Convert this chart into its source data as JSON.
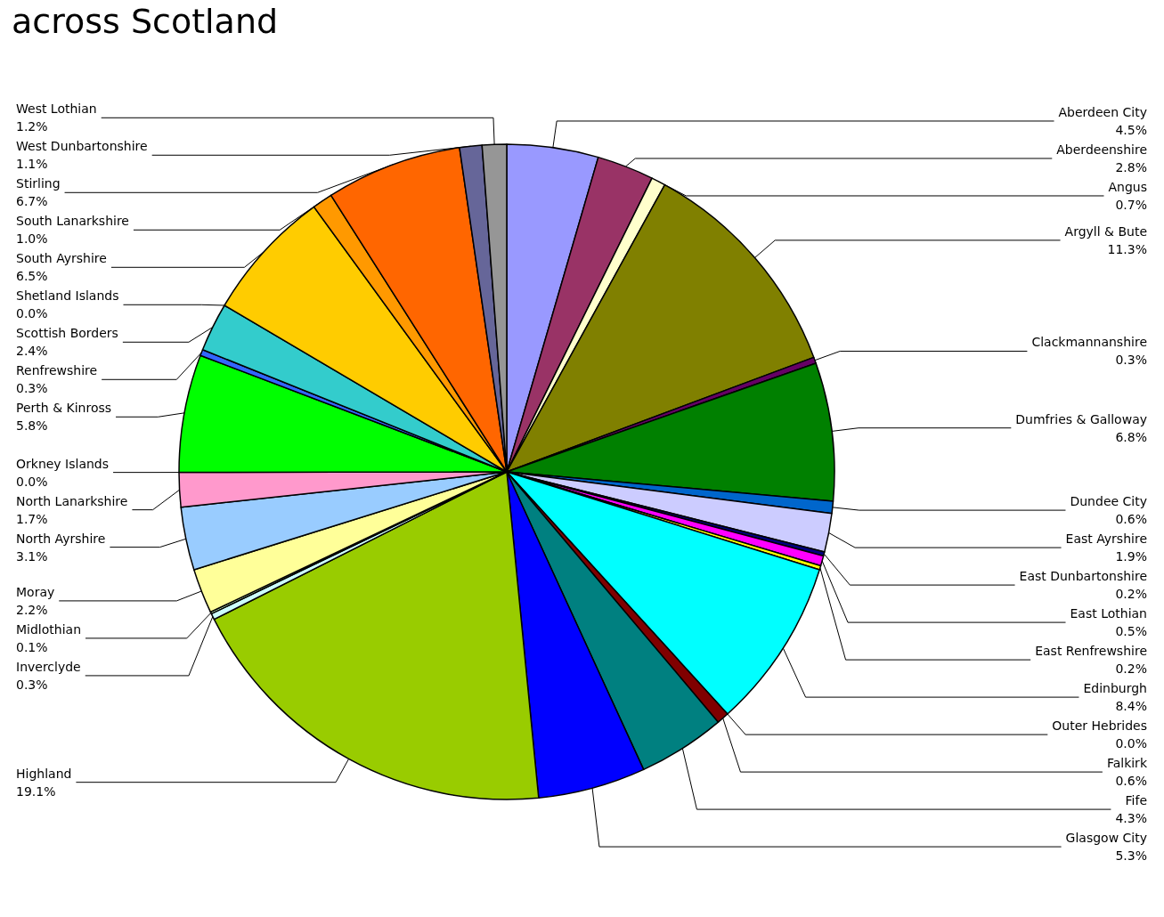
{
  "chart_data": {
    "type": "pie",
    "title": "across Scotland",
    "data_labels": true,
    "legend": false,
    "categories": [
      "Aberdeen City",
      "Aberdeenshire",
      "Angus",
      "Argyll & Bute",
      "Clackmannanshire",
      "Dumfries & Galloway",
      "Dundee City",
      "East Ayrshire",
      "East Dunbartonshire",
      "East Lothian",
      "East Renfrewshire",
      "Edinburgh",
      "Outer Hebrides",
      "Falkirk",
      "Fife",
      "Glasgow City",
      "Highland",
      "Inverclyde",
      "Midlothian",
      "Moray",
      "North Ayrshire",
      "North Lanarkshire",
      "Orkney Islands",
      "Perth & Kinross",
      "Renfrewshire",
      "Scottish Borders",
      "Shetland Islands",
      "South Ayrshire",
      "South Lanarkshire",
      "Stirling",
      "West Dunbartonshire",
      "West Lothian"
    ],
    "values": [
      4.5,
      2.8,
      0.7,
      11.3,
      0.3,
      6.8,
      0.6,
      1.9,
      0.2,
      0.5,
      0.2,
      8.4,
      0.0,
      0.6,
      4.3,
      5.3,
      19.1,
      0.3,
      0.1,
      2.2,
      3.1,
      1.7,
      0.0,
      5.8,
      0.3,
      2.4,
      0.0,
      6.5,
      1.0,
      6.7,
      1.1,
      1.2
    ],
    "value_labels": [
      "4.5%",
      "2.8%",
      "0.7%",
      "11.3%",
      "0.3%",
      "6.8%",
      "0.6%",
      "1.9%",
      "0.2%",
      "0.5%",
      "0.2%",
      "8.4%",
      "0.0%",
      "0.6%",
      "4.3%",
      "5.3%",
      "19.1%",
      "0.3%",
      "0.1%",
      "2.2%",
      "3.1%",
      "1.7%",
      "0.0%",
      "5.8%",
      "0.3%",
      "2.4%",
      "0.0%",
      "6.5%",
      "1.0%",
      "6.7%",
      "1.1%",
      "1.2%"
    ],
    "colors": [
      "#9999ff",
      "#993366",
      "#ffffcc",
      "#808000",
      "#660066",
      "#008000",
      "#0066cc",
      "#ccccff",
      "#000080",
      "#ff00ff",
      "#ffff00",
      "#00ffff",
      "#ffffff",
      "#800000",
      "#008080",
      "#0000ff",
      "#99cc00",
      "#ccffff",
      "#ccffcc",
      "#ffff99",
      "#99ccff",
      "#ff99cc",
      "#ffffff",
      "#00ff00",
      "#3366ff",
      "#33cccc",
      "#ffffff",
      "#ffcc00",
      "#ff9900",
      "#ff6600",
      "#666699",
      "#969696"
    ]
  }
}
